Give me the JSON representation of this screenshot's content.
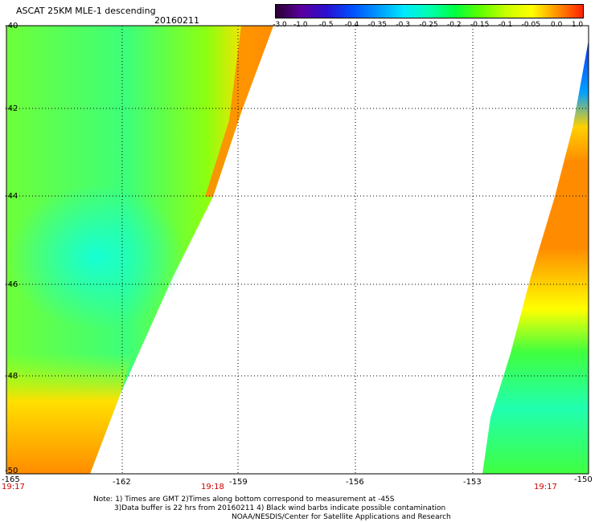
{
  "header": {
    "title": "ASCAT 25KM MLE-1 descending",
    "date": "20160211"
  },
  "colorbar": {
    "ticks": [
      "-3.0",
      "-1.0",
      "-0.5",
      "-0.4",
      "-0.35",
      "-0.3",
      "-0.25",
      "-0.2",
      "-0.15",
      "-0.1",
      "-0.05",
      "0.0",
      "1.0"
    ],
    "colors": [
      "#2a0030",
      "#5a00a0",
      "#2a10d0",
      "#0050ff",
      "#0098ff",
      "#00e8ff",
      "#00ffb0",
      "#00ff40",
      "#60ff00",
      "#c8ff00",
      "#ffff00",
      "#ff9000",
      "#ff2000"
    ]
  },
  "axes": {
    "lat_labels": [
      "-40",
      "-42",
      "-44",
      "-46",
      "-48",
      "-50"
    ],
    "lon_labels": [
      "-165",
      "-162",
      "-159",
      "-156",
      "-153",
      "-150"
    ],
    "times": [
      "19:17",
      "19:18",
      "19:17"
    ],
    "time_color": "#cc0000"
  },
  "notes": [
    "Note: 1) Times are GMT 2)Times along bottom correspond to measurement at -45S",
    "3)Data buffer is 22 hrs from 20160211 4) Black wind barbs indicate possible contamination",
    "NOAA/NESDIS/Center for Satellite Applications and Research"
  ],
  "map": {
    "lat_range": [
      -50,
      -40
    ],
    "lon_range": [
      -165,
      -150
    ],
    "grid": true
  }
}
